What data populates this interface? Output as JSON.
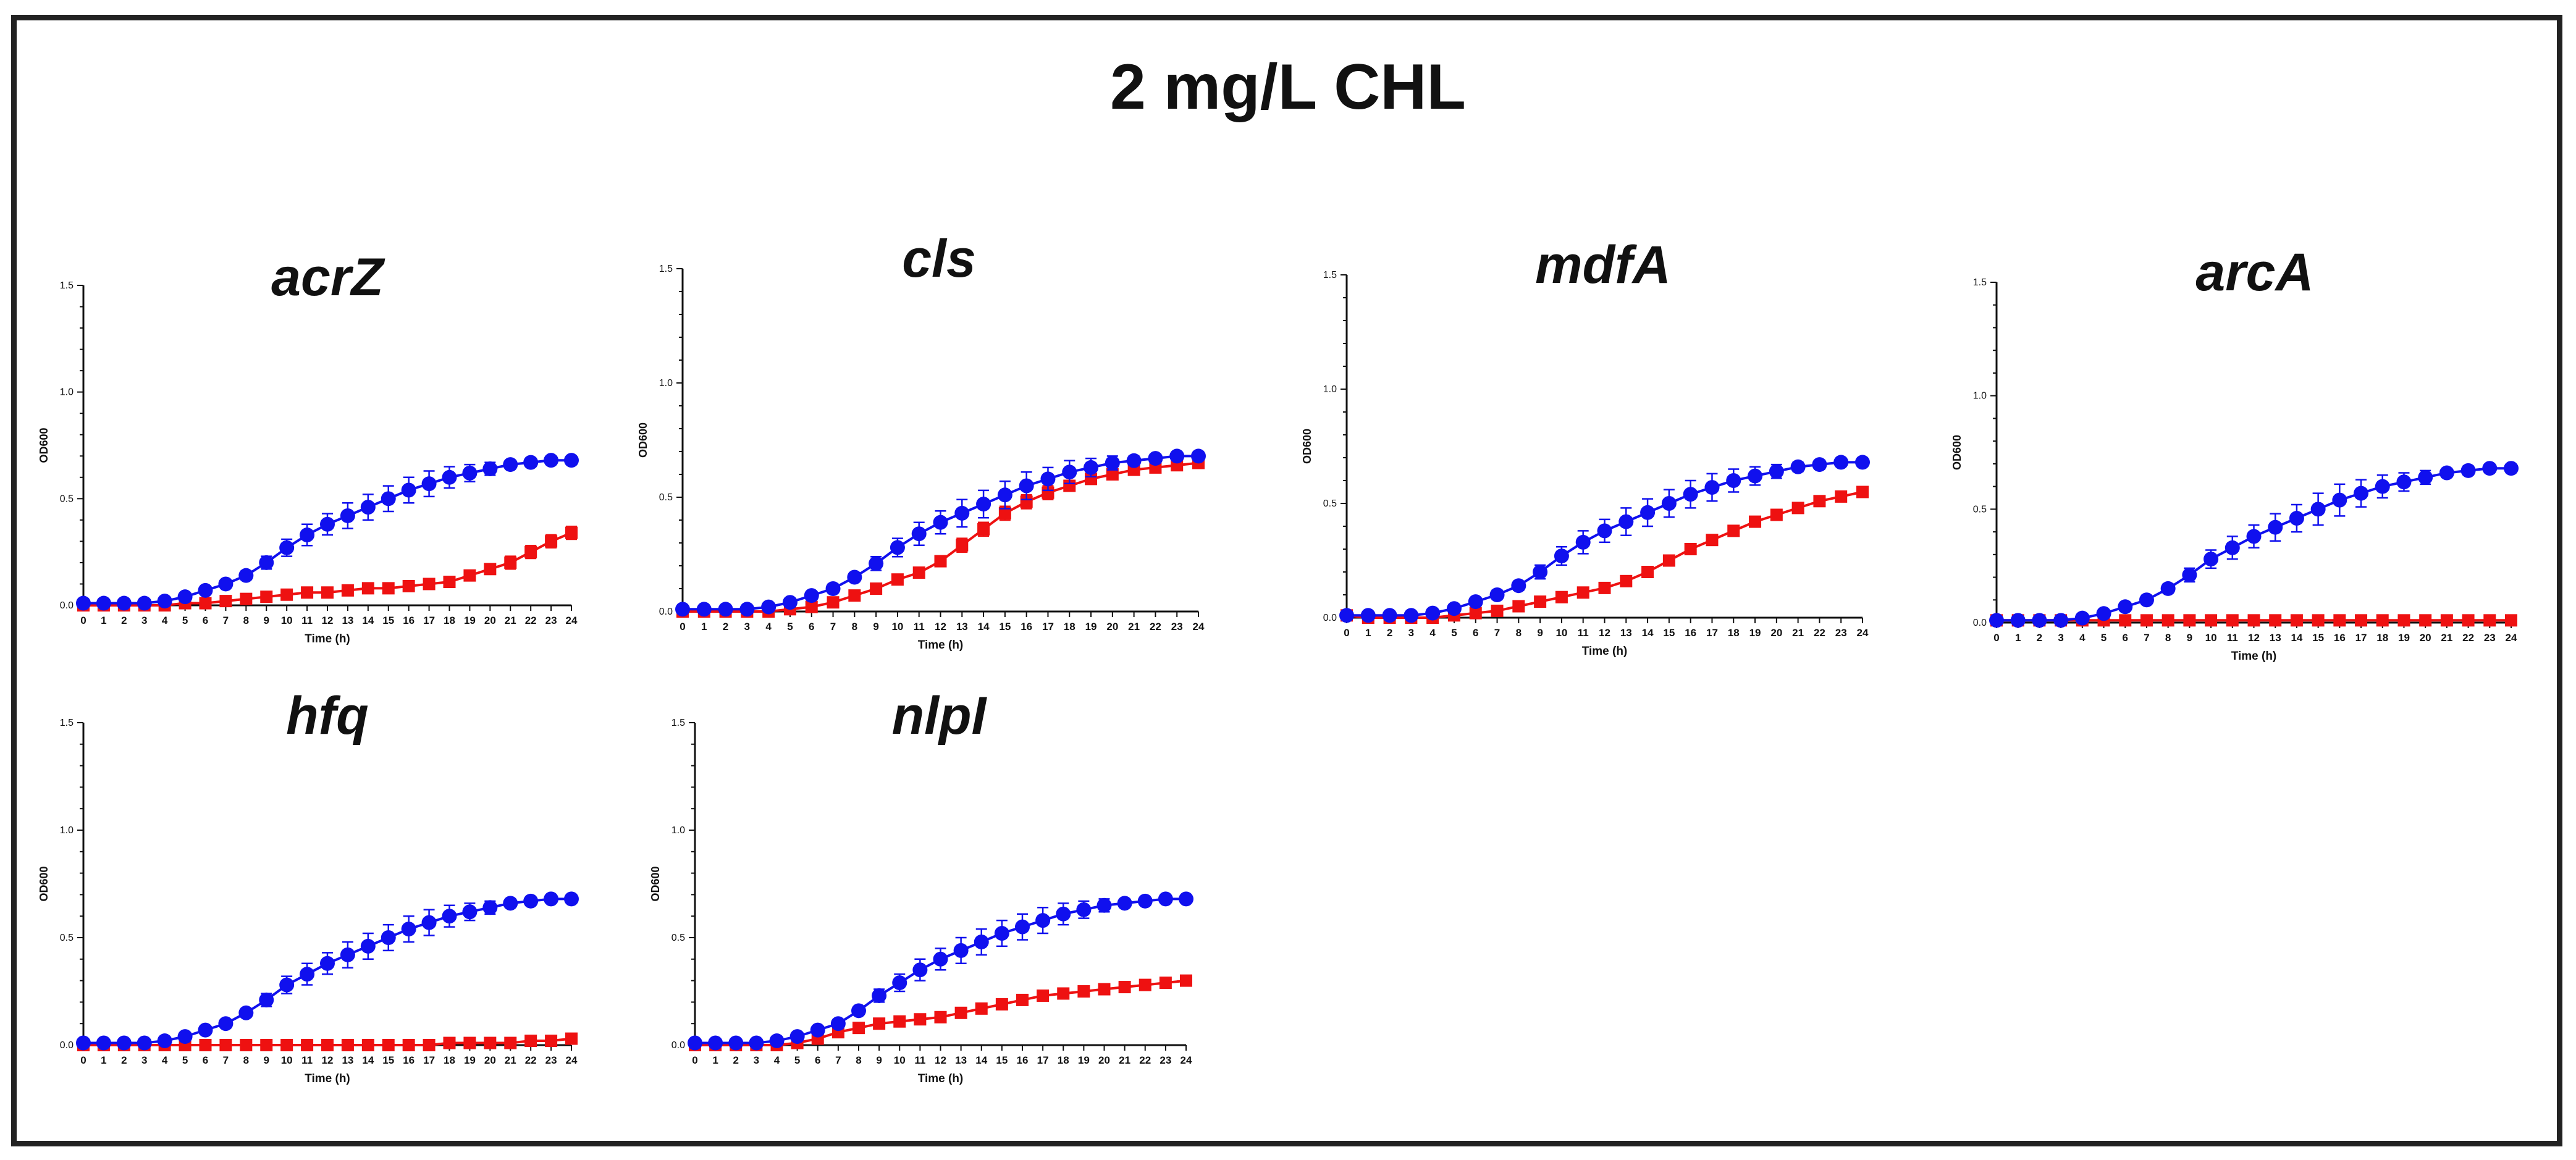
{
  "figure": {
    "title": "2 mg/L CHL",
    "colors": {
      "blue_series": "#1010ee",
      "red_series": "#ee1111",
      "axis": "#111111",
      "frame": "#222222"
    }
  },
  "chart_data": [
    {
      "type": "line",
      "title": "acrZ",
      "xlabel": "Time (h)",
      "ylabel": "OD600",
      "xlim": [
        0,
        24
      ],
      "ylim": [
        0,
        1.5
      ],
      "yticks": [
        "0.0",
        "0.5",
        "1.0",
        "1.5"
      ],
      "x": [
        0,
        1,
        2,
        3,
        4,
        5,
        6,
        7,
        8,
        9,
        10,
        11,
        12,
        13,
        14,
        15,
        16,
        17,
        18,
        19,
        20,
        21,
        22,
        23,
        24
      ],
      "series": [
        {
          "name": "blue",
          "marker": "circle",
          "values": [
            0.01,
            0.01,
            0.01,
            0.01,
            0.02,
            0.04,
            0.07,
            0.1,
            0.14,
            0.2,
            0.27,
            0.33,
            0.38,
            0.42,
            0.46,
            0.5,
            0.54,
            0.57,
            0.6,
            0.62,
            0.64,
            0.66,
            0.67,
            0.68,
            0.68
          ],
          "errors": [
            0,
            0,
            0,
            0,
            0,
            0.01,
            0.01,
            0.01,
            0.02,
            0.03,
            0.04,
            0.05,
            0.05,
            0.06,
            0.06,
            0.06,
            0.06,
            0.06,
            0.05,
            0.04,
            0.03,
            0.02,
            0.02,
            0.01,
            0.01
          ]
        },
        {
          "name": "red",
          "marker": "square",
          "values": [
            0.0,
            0.0,
            0.0,
            0.0,
            0.0,
            0.01,
            0.01,
            0.02,
            0.03,
            0.04,
            0.05,
            0.06,
            0.06,
            0.07,
            0.08,
            0.08,
            0.09,
            0.1,
            0.11,
            0.14,
            0.17,
            0.2,
            0.25,
            0.3,
            0.34
          ],
          "errors": [
            0,
            0,
            0,
            0,
            0,
            0,
            0,
            0,
            0,
            0,
            0,
            0,
            0,
            0,
            0,
            0.01,
            0.01,
            0.01,
            0.01,
            0.02,
            0.02,
            0.03,
            0.03,
            0.03,
            0.03
          ]
        }
      ]
    },
    {
      "type": "line",
      "title": "cls",
      "xlabel": "Time (h)",
      "ylabel": "OD600",
      "xlim": [
        0,
        24
      ],
      "ylim": [
        0,
        1.5
      ],
      "yticks": [
        "0.0",
        "0.5",
        "1.0",
        "1.5"
      ],
      "x": [
        0,
        1,
        2,
        3,
        4,
        5,
        6,
        7,
        8,
        9,
        10,
        11,
        12,
        13,
        14,
        15,
        16,
        17,
        18,
        19,
        20,
        21,
        22,
        23,
        24
      ],
      "series": [
        {
          "name": "blue",
          "marker": "circle",
          "values": [
            0.01,
            0.01,
            0.01,
            0.01,
            0.02,
            0.04,
            0.07,
            0.1,
            0.15,
            0.21,
            0.28,
            0.34,
            0.39,
            0.43,
            0.47,
            0.51,
            0.55,
            0.58,
            0.61,
            0.63,
            0.65,
            0.66,
            0.67,
            0.68,
            0.68
          ],
          "errors": [
            0,
            0,
            0,
            0,
            0,
            0.01,
            0.01,
            0.02,
            0.02,
            0.03,
            0.04,
            0.05,
            0.05,
            0.06,
            0.06,
            0.06,
            0.06,
            0.05,
            0.05,
            0.04,
            0.03,
            0.02,
            0.02,
            0.01,
            0.01
          ]
        },
        {
          "name": "red",
          "marker": "square",
          "values": [
            0.0,
            0.0,
            0.0,
            0.0,
            0.0,
            0.01,
            0.02,
            0.04,
            0.07,
            0.1,
            0.14,
            0.17,
            0.22,
            0.29,
            0.36,
            0.43,
            0.48,
            0.52,
            0.55,
            0.58,
            0.6,
            0.62,
            0.63,
            0.64,
            0.65
          ],
          "errors": [
            0,
            0,
            0,
            0,
            0,
            0,
            0,
            0.01,
            0.01,
            0.01,
            0.02,
            0.02,
            0.02,
            0.03,
            0.03,
            0.03,
            0.03,
            0.03,
            0.02,
            0.02,
            0.02,
            0.02,
            0.01,
            0.01,
            0.01
          ]
        }
      ]
    },
    {
      "type": "line",
      "title": "mdfA",
      "xlabel": "Time (h)",
      "ylabel": "OD600",
      "xlim": [
        0,
        24
      ],
      "ylim": [
        0,
        1.5
      ],
      "yticks": [
        "0.0",
        "0.5",
        "1.0",
        "1.5"
      ],
      "x": [
        0,
        1,
        2,
        3,
        4,
        5,
        6,
        7,
        8,
        9,
        10,
        11,
        12,
        13,
        14,
        15,
        16,
        17,
        18,
        19,
        20,
        21,
        22,
        23,
        24
      ],
      "series": [
        {
          "name": "blue",
          "marker": "circle",
          "values": [
            0.01,
            0.01,
            0.01,
            0.01,
            0.02,
            0.04,
            0.07,
            0.1,
            0.14,
            0.2,
            0.27,
            0.33,
            0.38,
            0.42,
            0.46,
            0.5,
            0.54,
            0.57,
            0.6,
            0.62,
            0.64,
            0.66,
            0.67,
            0.68,
            0.68
          ],
          "errors": [
            0,
            0,
            0,
            0,
            0,
            0.01,
            0.01,
            0.02,
            0.02,
            0.03,
            0.04,
            0.05,
            0.05,
            0.06,
            0.06,
            0.06,
            0.06,
            0.06,
            0.05,
            0.04,
            0.03,
            0.02,
            0.02,
            0.01,
            0.01
          ]
        },
        {
          "name": "red",
          "marker": "square",
          "values": [
            0.01,
            0.0,
            0.0,
            0.0,
            0.0,
            0.01,
            0.02,
            0.03,
            0.05,
            0.07,
            0.09,
            0.11,
            0.13,
            0.16,
            0.2,
            0.25,
            0.3,
            0.34,
            0.38,
            0.42,
            0.45,
            0.48,
            0.51,
            0.53,
            0.55
          ],
          "errors": [
            0,
            0,
            0,
            0,
            0,
            0,
            0,
            0,
            0.01,
            0.01,
            0.01,
            0.01,
            0.01,
            0.02,
            0.02,
            0.02,
            0.02,
            0.02,
            0.02,
            0.02,
            0.02,
            0.02,
            0.01,
            0.01,
            0.01
          ]
        }
      ]
    },
    {
      "type": "line",
      "title": "arcA",
      "xlabel": "Time (h)",
      "ylabel": "OD600",
      "xlim": [
        0,
        24
      ],
      "ylim": [
        0,
        1.5
      ],
      "yticks": [
        "0.0",
        "0.5",
        "1.0",
        "1.5"
      ],
      "x": [
        0,
        1,
        2,
        3,
        4,
        5,
        6,
        7,
        8,
        9,
        10,
        11,
        12,
        13,
        14,
        15,
        16,
        17,
        18,
        19,
        20,
        21,
        22,
        23,
        24
      ],
      "series": [
        {
          "name": "blue",
          "marker": "circle",
          "values": [
            0.01,
            0.01,
            0.01,
            0.01,
            0.02,
            0.04,
            0.07,
            0.1,
            0.15,
            0.21,
            0.28,
            0.33,
            0.38,
            0.42,
            0.46,
            0.5,
            0.54,
            0.57,
            0.6,
            0.62,
            0.64,
            0.66,
            0.67,
            0.68,
            0.68
          ],
          "errors": [
            0,
            0,
            0,
            0,
            0,
            0.01,
            0.01,
            0.02,
            0.02,
            0.03,
            0.04,
            0.05,
            0.05,
            0.06,
            0.06,
            0.07,
            0.07,
            0.06,
            0.05,
            0.04,
            0.03,
            0.02,
            0.02,
            0.01,
            0.01
          ]
        },
        {
          "name": "red",
          "marker": "square",
          "values": [
            0.01,
            0.01,
            0.01,
            0.01,
            0.01,
            0.01,
            0.01,
            0.01,
            0.01,
            0.01,
            0.01,
            0.01,
            0.01,
            0.01,
            0.01,
            0.01,
            0.01,
            0.01,
            0.01,
            0.01,
            0.01,
            0.01,
            0.01,
            0.01,
            0.01
          ],
          "errors": [
            0,
            0,
            0,
            0,
            0,
            0,
            0,
            0,
            0,
            0,
            0,
            0,
            0,
            0,
            0,
            0,
            0,
            0,
            0,
            0,
            0,
            0,
            0,
            0,
            0
          ]
        }
      ]
    },
    {
      "type": "line",
      "title": "hfq",
      "xlabel": "Time (h)",
      "ylabel": "OD600",
      "xlim": [
        0,
        24
      ],
      "ylim": [
        0,
        1.5
      ],
      "yticks": [
        "0.0",
        "0.5",
        "1.0",
        "1.5"
      ],
      "x": [
        0,
        1,
        2,
        3,
        4,
        5,
        6,
        7,
        8,
        9,
        10,
        11,
        12,
        13,
        14,
        15,
        16,
        17,
        18,
        19,
        20,
        21,
        22,
        23,
        24
      ],
      "series": [
        {
          "name": "blue",
          "marker": "circle",
          "values": [
            0.01,
            0.01,
            0.01,
            0.01,
            0.02,
            0.04,
            0.07,
            0.1,
            0.15,
            0.21,
            0.28,
            0.33,
            0.38,
            0.42,
            0.46,
            0.5,
            0.54,
            0.57,
            0.6,
            0.62,
            0.64,
            0.66,
            0.67,
            0.68,
            0.68
          ],
          "errors": [
            0,
            0,
            0,
            0,
            0,
            0.01,
            0.01,
            0.02,
            0.02,
            0.03,
            0.04,
            0.05,
            0.05,
            0.06,
            0.06,
            0.06,
            0.06,
            0.06,
            0.05,
            0.04,
            0.03,
            0.02,
            0.02,
            0.01,
            0.01
          ]
        },
        {
          "name": "red",
          "marker": "square",
          "values": [
            0.0,
            0.0,
            0.0,
            0.0,
            0.0,
            0.0,
            0.0,
            0.0,
            0.0,
            0.0,
            0.0,
            0.0,
            0.0,
            0.0,
            0.0,
            0.0,
            0.0,
            0.0,
            0.01,
            0.01,
            0.01,
            0.01,
            0.02,
            0.02,
            0.03
          ],
          "errors": [
            0,
            0,
            0,
            0,
            0,
            0,
            0,
            0,
            0,
            0,
            0,
            0,
            0,
            0,
            0,
            0,
            0,
            0,
            0,
            0,
            0,
            0,
            0.01,
            0.01,
            0.01
          ]
        }
      ]
    },
    {
      "type": "line",
      "title": "nlpI",
      "xlabel": "Time (h)",
      "ylabel": "OD600",
      "xlim": [
        0,
        24
      ],
      "ylim": [
        0,
        1.5
      ],
      "yticks": [
        "0.0",
        "0.5",
        "1.0",
        "1.5"
      ],
      "x": [
        0,
        1,
        2,
        3,
        4,
        5,
        6,
        7,
        8,
        9,
        10,
        11,
        12,
        13,
        14,
        15,
        16,
        17,
        18,
        19,
        20,
        21,
        22,
        23,
        24
      ],
      "series": [
        {
          "name": "blue",
          "marker": "circle",
          "values": [
            0.01,
            0.01,
            0.01,
            0.01,
            0.02,
            0.04,
            0.07,
            0.1,
            0.16,
            0.23,
            0.29,
            0.35,
            0.4,
            0.44,
            0.48,
            0.52,
            0.55,
            0.58,
            0.61,
            0.63,
            0.65,
            0.66,
            0.67,
            0.68,
            0.68
          ],
          "errors": [
            0,
            0,
            0,
            0,
            0,
            0.01,
            0.01,
            0.02,
            0.02,
            0.03,
            0.04,
            0.05,
            0.05,
            0.06,
            0.06,
            0.06,
            0.06,
            0.06,
            0.05,
            0.04,
            0.03,
            0.02,
            0.02,
            0.01,
            0.01
          ]
        },
        {
          "name": "red",
          "marker": "square",
          "values": [
            0.0,
            0.0,
            0.0,
            0.0,
            0.0,
            0.01,
            0.03,
            0.06,
            0.08,
            0.1,
            0.11,
            0.12,
            0.13,
            0.15,
            0.17,
            0.19,
            0.21,
            0.23,
            0.24,
            0.25,
            0.26,
            0.27,
            0.28,
            0.29,
            0.3
          ],
          "errors": [
            0,
            0,
            0,
            0,
            0,
            0,
            0,
            0,
            0.01,
            0.01,
            0.01,
            0.01,
            0.01,
            0.01,
            0.01,
            0.01,
            0.01,
            0.01,
            0.01,
            0.01,
            0.01,
            0.01,
            0.01,
            0.01,
            0.01
          ]
        }
      ]
    }
  ]
}
